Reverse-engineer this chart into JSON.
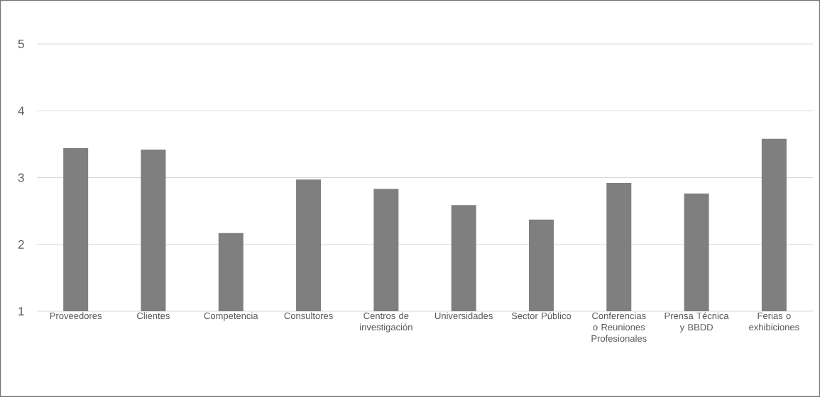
{
  "chart_data": {
    "type": "bar",
    "categories": [
      "Proveedores",
      "Clientes",
      "Competencia",
      "Consultores",
      "Centros de investigación",
      "Universidades",
      "Sector Público",
      "Conferencias o Reuniones Profesionales",
      "Prensa Técnica y BBDD",
      "Ferias o exhibiciones"
    ],
    "values": [
      3.44,
      3.42,
      2.17,
      2.97,
      2.83,
      2.59,
      2.37,
      2.92,
      2.76,
      3.58
    ],
    "color": "#7f7f7f",
    "ylim": [
      1,
      5
    ],
    "yticks": [
      1,
      2,
      3,
      4,
      5
    ],
    "grid": "y"
  }
}
